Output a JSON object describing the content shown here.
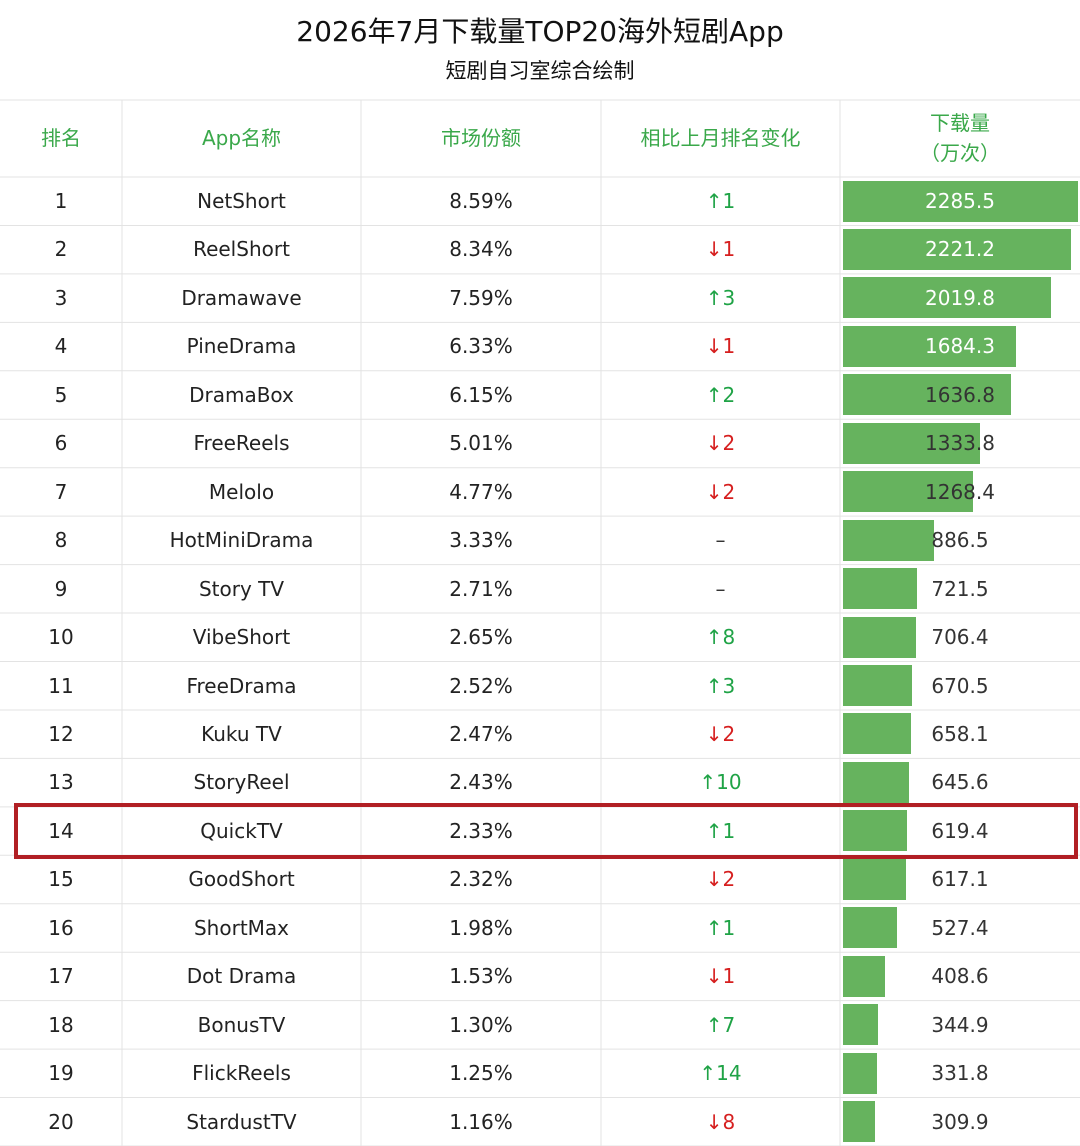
{
  "title": "2026年7月下载量TOP20海外短剧App",
  "subtitle": "短剧自习室综合绘制",
  "colors": {
    "header_text": "#3aa84a",
    "bar": "#66b35e",
    "up": "#1fa346",
    "down": "#d61f1f",
    "highlight_border": "#b11f24",
    "grid_line": "#e3e3e3"
  },
  "chart_data": {
    "type": "table",
    "columns": [
      "排名",
      "App名称",
      "市场份额",
      "相比上月排名变化",
      "下载量",
      "（万次）"
    ],
    "highlighted_rank": 14,
    "rows": [
      {
        "rank": "1",
        "app": "NetShort",
        "share": "8.59%",
        "change_arrow": "↑",
        "change_num": "1",
        "direction": "up",
        "downloads": 2285.5
      },
      {
        "rank": "2",
        "app": "ReelShort",
        "share": "8.34%",
        "change_arrow": "↓",
        "change_num": "1",
        "direction": "down",
        "downloads": 2221.2
      },
      {
        "rank": "3",
        "app": "Dramawave",
        "share": "7.59%",
        "change_arrow": "↑",
        "change_num": "3",
        "direction": "up",
        "downloads": 2019.8
      },
      {
        "rank": "4",
        "app": "PineDrama",
        "share": "6.33%",
        "change_arrow": "↓",
        "change_num": "1",
        "direction": "down",
        "downloads": 1684.3
      },
      {
        "rank": "5",
        "app": "DramaBox",
        "share": "6.15%",
        "change_arrow": "↑",
        "change_num": "2",
        "direction": "up",
        "downloads": 1636.8
      },
      {
        "rank": "6",
        "app": "FreeReels",
        "share": "5.01%",
        "change_arrow": "↓",
        "change_num": "2",
        "direction": "down",
        "downloads": 1333.8
      },
      {
        "rank": "7",
        "app": "Melolo",
        "share": "4.77%",
        "change_arrow": "↓",
        "change_num": "2",
        "direction": "down",
        "downloads": 1268.4
      },
      {
        "rank": "8",
        "app": "HotMiniDrama",
        "share": "3.33%",
        "change_arrow": "–",
        "change_num": "",
        "direction": "flat",
        "downloads": 886.5
      },
      {
        "rank": "9",
        "app": "Story TV",
        "share": "2.71%",
        "change_arrow": "–",
        "change_num": "",
        "direction": "flat",
        "downloads": 721.5
      },
      {
        "rank": "10",
        "app": "VibeShort",
        "share": "2.65%",
        "change_arrow": "↑",
        "change_num": "8",
        "direction": "up",
        "downloads": 706.4
      },
      {
        "rank": "11",
        "app": "FreeDrama",
        "share": "2.52%",
        "change_arrow": "↑",
        "change_num": "3",
        "direction": "up",
        "downloads": 670.5
      },
      {
        "rank": "12",
        "app": "Kuku TV",
        "share": "2.47%",
        "change_arrow": "↓",
        "change_num": "2",
        "direction": "down",
        "downloads": 658.1
      },
      {
        "rank": "13",
        "app": "StoryReel",
        "share": "2.43%",
        "change_arrow": "↑",
        "change_num": "10",
        "direction": "up",
        "downloads": 645.6
      },
      {
        "rank": "14",
        "app": "QuickTV",
        "share": "2.33%",
        "change_arrow": "↑",
        "change_num": "1",
        "direction": "up",
        "downloads": 619.4
      },
      {
        "rank": "15",
        "app": "GoodShort",
        "share": "2.32%",
        "change_arrow": "↓",
        "change_num": "2",
        "direction": "down",
        "downloads": 617.1
      },
      {
        "rank": "16",
        "app": "ShortMax",
        "share": "1.98%",
        "change_arrow": "↑",
        "change_num": "1",
        "direction": "up",
        "downloads": 527.4
      },
      {
        "rank": "17",
        "app": "Dot Drama",
        "share": "1.53%",
        "change_arrow": "↓",
        "change_num": "1",
        "direction": "down",
        "downloads": 408.6
      },
      {
        "rank": "18",
        "app": "BonusTV",
        "share": "1.30%",
        "change_arrow": "↑",
        "change_num": "7",
        "direction": "up",
        "downloads": 344.9
      },
      {
        "rank": "19",
        "app": "FlickReels",
        "share": "1.25%",
        "change_arrow": "↑",
        "change_num": "14",
        "direction": "up",
        "downloads": 331.8
      },
      {
        "rank": "20",
        "app": "StardustTV",
        "share": "1.16%",
        "change_arrow": "↓",
        "change_num": "8",
        "direction": "down",
        "downloads": 309.9
      }
    ]
  }
}
